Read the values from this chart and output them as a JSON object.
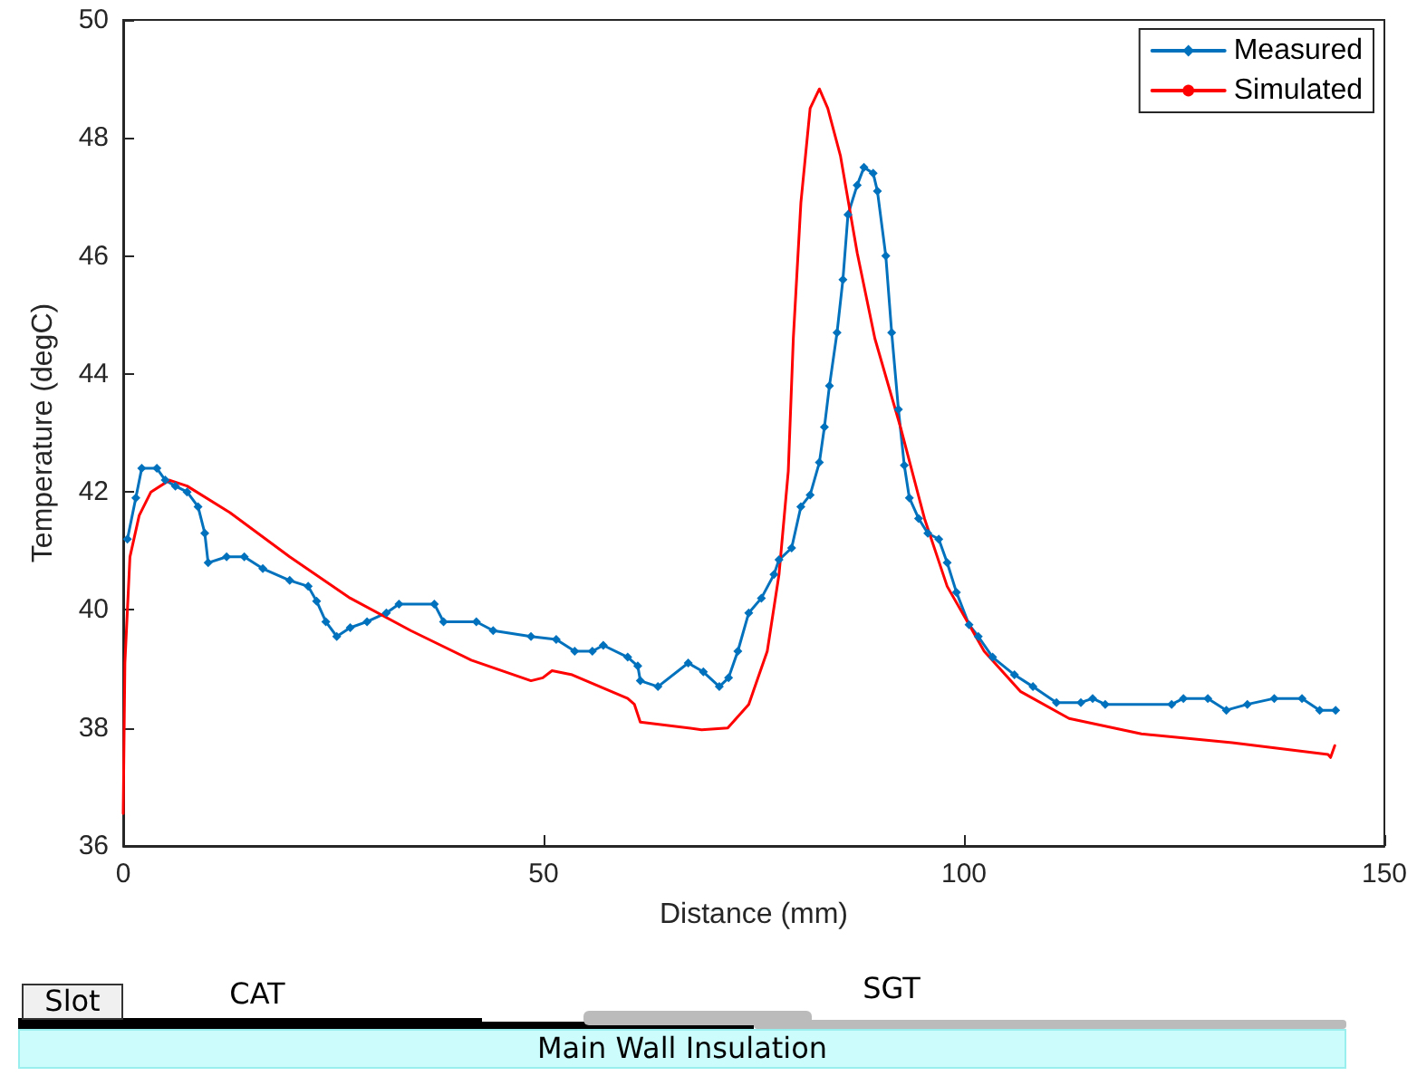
{
  "chart_data": {
    "type": "line",
    "xlabel": "Distance (mm)",
    "ylabel": "Temperature (degC)",
    "xlim": [
      0,
      150
    ],
    "xticks": [
      0,
      50,
      100,
      150
    ],
    "ylim": [
      36,
      50
    ],
    "yticks": [
      36,
      38,
      40,
      42,
      44,
      46,
      48,
      50
    ],
    "grid": false,
    "legend": "top right",
    "series": [
      {
        "name": "Measured",
        "color": "#0072bd",
        "marker": "diamond",
        "x": [
          0.5,
          1.5,
          2.2,
          4,
          5,
          6.2,
          7.6,
          8.9,
          9.7,
          10.1,
          12.3,
          14.4,
          16.6,
          19.8,
          22,
          23,
          24.1,
          25.4,
          27,
          29,
          31.3,
          32.8,
          37,
          38.1,
          42,
          44,
          48.5,
          51.5,
          53.7,
          55.8,
          57.1,
          60,
          61.2,
          61.5,
          63.6,
          67.2,
          69,
          70.9,
          72,
          73.1,
          74.4,
          75.9,
          77.4,
          78,
          79.5,
          80.6,
          81.7,
          82.8,
          83.4,
          84,
          84.9,
          85.6,
          86.2,
          87.3,
          88.1,
          89.2,
          89.7,
          90.7,
          91.4,
          92.2,
          92.9,
          93.5,
          94.6,
          95.7,
          97,
          98,
          99.1,
          100.6,
          101.7,
          103.4,
          106,
          108.2,
          111,
          113.9,
          115.3,
          116.8,
          124.7,
          126.1,
          129,
          131.2,
          133.7,
          136.9,
          140.2,
          142.3,
          144.2
        ],
        "values": [
          41.2,
          41.9,
          42.4,
          42.4,
          42.2,
          42.1,
          42.0,
          41.75,
          41.3,
          40.8,
          40.9,
          40.9,
          40.7,
          40.5,
          40.4,
          40.15,
          39.8,
          39.55,
          39.7,
          39.8,
          39.95,
          40.1,
          40.1,
          39.8,
          39.8,
          39.65,
          39.55,
          39.5,
          39.3,
          39.3,
          39.4,
          39.2,
          39.05,
          38.8,
          38.7,
          39.1,
          38.95,
          38.7,
          38.85,
          39.3,
          39.95,
          40.2,
          40.6,
          40.85,
          41.05,
          41.75,
          41.95,
          42.5,
          43.1,
          43.8,
          44.7,
          45.6,
          46.7,
          47.2,
          47.5,
          47.4,
          47.1,
          46.0,
          44.7,
          43.4,
          42.45,
          41.9,
          41.55,
          41.3,
          41.2,
          40.8,
          40.3,
          39.75,
          39.55,
          39.2,
          38.9,
          38.7,
          38.43,
          38.43,
          38.5,
          38.4,
          38.4,
          38.5,
          38.5,
          38.3,
          38.4,
          38.5,
          38.5,
          38.3,
          38.3
        ]
      },
      {
        "name": "Simulated",
        "color": "#ff0000",
        "marker": "none",
        "x": [
          0,
          0.2,
          0.8,
          1.9,
          3.3,
          5.5,
          7.6,
          12.7,
          19.8,
          27,
          34.2,
          41.4,
          48.5,
          49.9,
          51,
          53.4,
          60,
          60.8,
          61.5,
          68.8,
          71.9,
          74.4,
          76.6,
          78,
          79.1,
          79.7,
          80.6,
          81.7,
          82.8,
          83.8,
          85.3,
          87.3,
          89.4,
          92.5,
          95.3,
          98,
          102.4,
          106.7,
          112.5,
          121.1,
          131.9,
          143.3,
          143.6,
          144.1
        ],
        "values": [
          36.55,
          39.1,
          40.9,
          41.6,
          42.0,
          42.2,
          42.1,
          41.65,
          40.9,
          40.2,
          39.65,
          39.15,
          38.8,
          38.85,
          38.97,
          38.9,
          38.5,
          38.4,
          38.1,
          37.97,
          38.0,
          38.4,
          39.3,
          40.6,
          42.35,
          44.6,
          46.9,
          48.5,
          48.83,
          48.5,
          47.7,
          46.05,
          44.6,
          43.07,
          41.55,
          40.4,
          39.3,
          38.62,
          38.16,
          37.9,
          37.75,
          37.55,
          37.5,
          37.7
        ]
      }
    ],
    "annotations": [
      "Slot",
      "CAT",
      "SGT",
      "Main Wall Insulation"
    ]
  }
}
